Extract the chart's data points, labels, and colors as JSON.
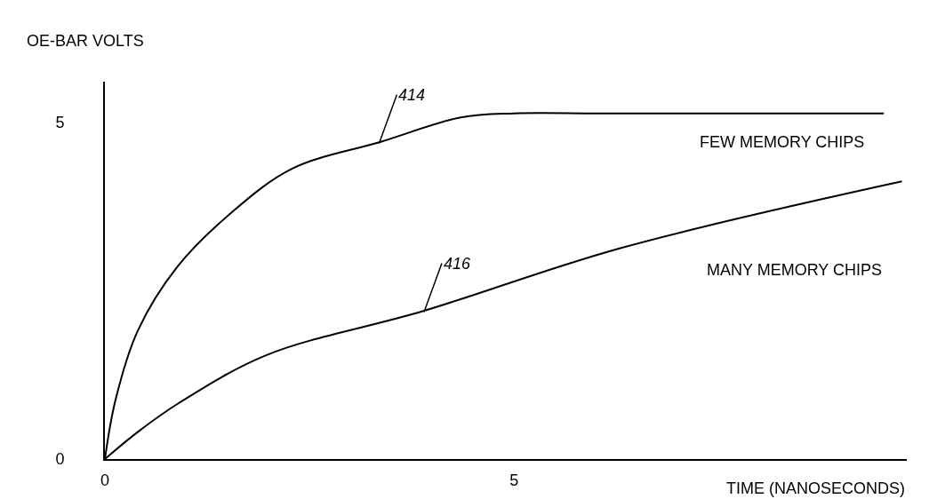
{
  "chart_data": {
    "type": "line",
    "ylabel": "OE-BAR VOLTS",
    "xlabel": "TIME (NANOSECONDS)",
    "xlim": [
      0,
      9.8
    ],
    "ylim": [
      0,
      5.6
    ],
    "xticks": [
      0,
      5
    ],
    "yticks": [
      0,
      5
    ],
    "legend": false,
    "marker": "none",
    "line_style": "solid",
    "series": [
      {
        "name": "FEW MEMORY CHIPS",
        "color": "#000000",
        "x": [
          0,
          0.13,
          0.4,
          0.89,
          1.54,
          2.29,
          3.38,
          4.35,
          5,
          6,
          7,
          8,
          9.52
        ],
        "values": [
          0,
          0.88,
          1.9,
          2.86,
          3.65,
          4.31,
          4.71,
          5.07,
          5.13,
          5.13,
          5.13,
          5.13,
          5.13
        ]
      },
      {
        "name": "MANY MEMORY CHIPS",
        "color": "#000000",
        "x": [
          0,
          0.4,
          0.89,
          1.97,
          3.9,
          6.3,
          9.74
        ],
        "values": [
          0,
          0.4,
          0.82,
          1.54,
          2.2,
          3.13,
          4.12
        ]
      }
    ],
    "annotations": [
      {
        "text": "414",
        "x": 3.35,
        "y": 4.68
      },
      {
        "text": "416",
        "x": 3.9,
        "y": 2.18
      }
    ]
  }
}
